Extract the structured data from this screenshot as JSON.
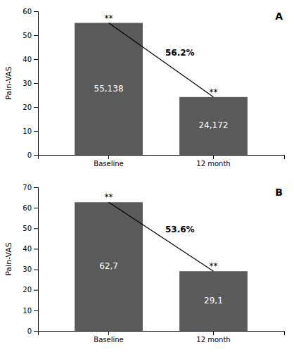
{
  "chart_data": [
    {
      "type": "bar",
      "title": "A",
      "categories": [
        "Baseline",
        "12 month"
      ],
      "values": [
        55.138,
        24.172
      ],
      "value_labels": [
        "55,138",
        "24,172"
      ],
      "data_labels": true,
      "color": "#5a5a5a",
      "ylabel": "Pain-VAS",
      "ylim": [
        0,
        60
      ],
      "yticks": [
        0,
        10,
        20,
        30,
        40,
        50,
        60
      ],
      "annotations": [
        "**",
        "**",
        "56.2%"
      ],
      "grid": false
    },
    {
      "type": "bar",
      "title": "B",
      "categories": [
        "Baseline",
        "12 month"
      ],
      "values": [
        62.7,
        29.1
      ],
      "value_labels": [
        "62,7",
        "29,1"
      ],
      "data_labels": true,
      "color": "#5a5a5a",
      "ylabel": "Pain-VAS",
      "ylim": [
        0,
        70
      ],
      "yticks": [
        0,
        10,
        20,
        30,
        40,
        50,
        60,
        70
      ],
      "annotations": [
        "**",
        "**",
        "53.6%"
      ],
      "grid": false
    }
  ]
}
